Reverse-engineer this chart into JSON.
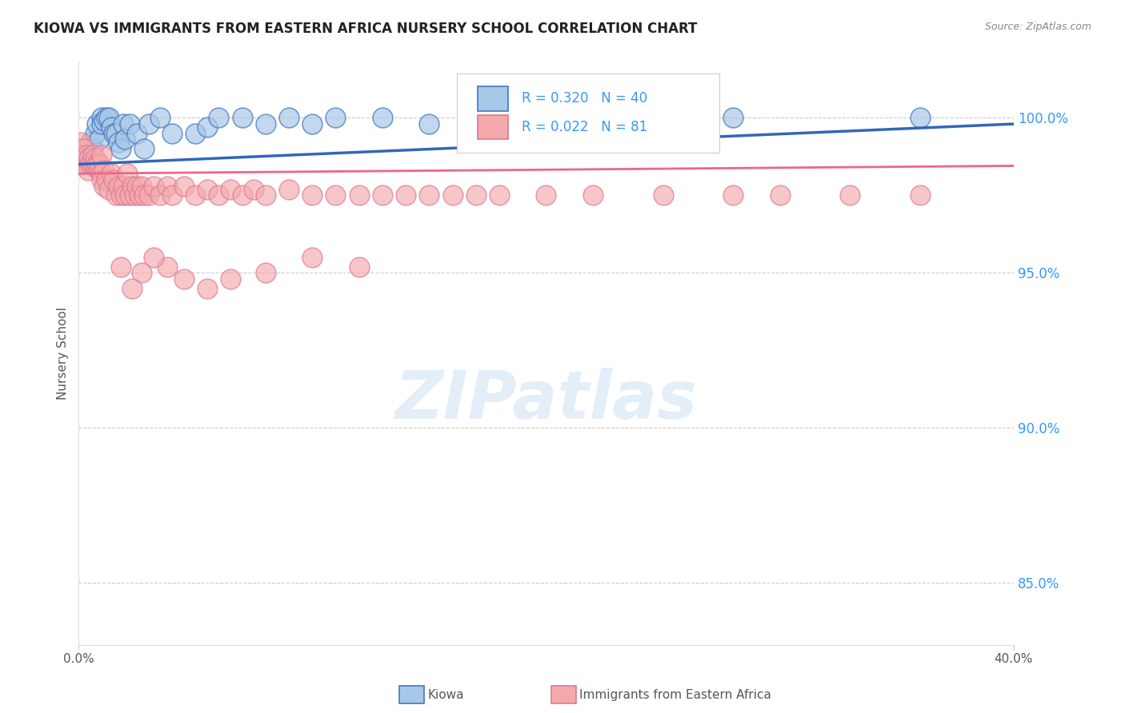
{
  "title": "KIOWA VS IMMIGRANTS FROM EASTERN AFRICA NURSERY SCHOOL CORRELATION CHART",
  "source": "Source: ZipAtlas.com",
  "ylabel": "Nursery School",
  "yticks": [
    85.0,
    90.0,
    95.0,
    100.0
  ],
  "xlim": [
    0.0,
    40.0
  ],
  "ylim": [
    83.0,
    101.8
  ],
  "legend_blue_label": "Kiowa",
  "legend_pink_label": "Immigrants from Eastern Africa",
  "R_blue": 0.32,
  "N_blue": 40,
  "R_pink": 0.022,
  "N_pink": 81,
  "color_blue_fill": "#A8C8E8",
  "color_blue_edge": "#4477BB",
  "color_pink_fill": "#F4AAAA",
  "color_pink_edge": "#DD7799",
  "color_blue_line": "#3366BB",
  "color_pink_line": "#EE6688",
  "watermark": "ZIPatlas",
  "blue_x": [
    0.3,
    0.5,
    0.6,
    0.7,
    0.8,
    0.9,
    1.0,
    1.0,
    1.1,
    1.2,
    1.3,
    1.4,
    1.5,
    1.6,
    1.7,
    1.8,
    1.9,
    2.0,
    2.2,
    2.5,
    2.8,
    3.0,
    3.5,
    4.0,
    5.0,
    5.5,
    6.0,
    7.0,
    8.0,
    9.0,
    10.0,
    11.0,
    13.0,
    15.0,
    17.0,
    20.0,
    22.0,
    25.0,
    28.0,
    36.0
  ],
  "blue_y": [
    98.6,
    99.2,
    99.0,
    99.5,
    99.8,
    99.3,
    100.0,
    99.8,
    99.9,
    100.0,
    100.0,
    99.7,
    99.5,
    99.5,
    99.2,
    99.0,
    99.8,
    99.3,
    99.8,
    99.5,
    99.0,
    99.8,
    100.0,
    99.5,
    99.5,
    99.7,
    100.0,
    100.0,
    99.8,
    100.0,
    99.8,
    100.0,
    100.0,
    99.8,
    100.0,
    100.0,
    100.0,
    99.8,
    100.0,
    100.0
  ],
  "pink_x": [
    0.05,
    0.1,
    0.15,
    0.2,
    0.25,
    0.3,
    0.35,
    0.4,
    0.45,
    0.5,
    0.55,
    0.6,
    0.65,
    0.7,
    0.75,
    0.8,
    0.85,
    0.9,
    0.95,
    1.0,
    1.0,
    1.1,
    1.1,
    1.2,
    1.3,
    1.4,
    1.5,
    1.6,
    1.7,
    1.8,
    1.9,
    2.0,
    2.1,
    2.2,
    2.3,
    2.4,
    2.5,
    2.6,
    2.7,
    2.8,
    3.0,
    3.2,
    3.5,
    3.8,
    4.0,
    4.5,
    5.0,
    5.5,
    6.0,
    6.5,
    7.0,
    7.5,
    8.0,
    9.0,
    10.0,
    11.0,
    12.0,
    13.0,
    14.0,
    15.0,
    16.0,
    17.0,
    18.0,
    20.0,
    22.0,
    25.0,
    28.0,
    30.0,
    33.0,
    36.0,
    10.0,
    12.0,
    8.0,
    6.5,
    5.5,
    4.5,
    3.8,
    3.2,
    2.7,
    2.3,
    1.8
  ],
  "pink_y": [
    99.0,
    99.2,
    98.8,
    98.5,
    99.0,
    98.7,
    98.8,
    98.3,
    98.7,
    98.5,
    98.6,
    98.8,
    98.5,
    98.7,
    98.4,
    98.5,
    98.3,
    98.5,
    98.2,
    98.0,
    98.8,
    97.8,
    98.3,
    98.0,
    97.7,
    98.2,
    98.0,
    97.5,
    97.8,
    97.5,
    97.8,
    97.5,
    98.2,
    97.5,
    97.8,
    97.5,
    97.8,
    97.5,
    97.8,
    97.5,
    97.5,
    97.8,
    97.5,
    97.8,
    97.5,
    97.8,
    97.5,
    97.7,
    97.5,
    97.7,
    97.5,
    97.7,
    97.5,
    97.7,
    97.5,
    97.5,
    97.5,
    97.5,
    97.5,
    97.5,
    97.5,
    97.5,
    97.5,
    97.5,
    97.5,
    97.5,
    97.5,
    97.5,
    97.5,
    97.5,
    95.5,
    95.2,
    95.0,
    94.8,
    94.5,
    94.8,
    95.2,
    95.5,
    95.0,
    94.5,
    95.2
  ]
}
